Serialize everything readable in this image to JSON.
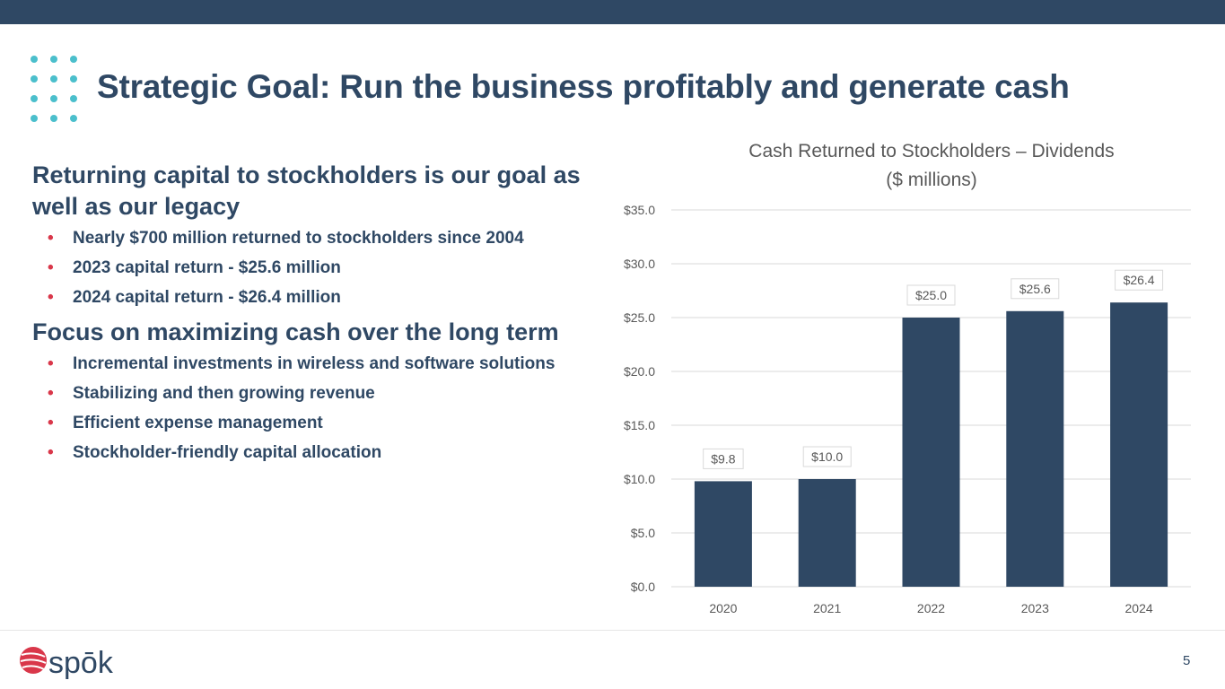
{
  "slide": {
    "title": "Strategic Goal: Run the business profitably and generate cash",
    "page_number": "5",
    "logo_text": "spōk",
    "colors": {
      "top_bar": "#2f4864",
      "accent_dots": "#4bbfcc",
      "bullet": "#d9374a",
      "text": "#2f4864",
      "bar": "#2f4864"
    }
  },
  "sections": [
    {
      "heading": "Returning capital to stockholders is our goal as well as our legacy",
      "bullets": [
        "Nearly $700 million returned to stockholders since 2004",
        "2023 capital return - $25.6 million",
        "2024 capital return - $26.4 million"
      ]
    },
    {
      "heading": "Focus on maximizing cash over the long term",
      "bullets": [
        "Incremental investments in wireless and software solutions",
        "Stabilizing and then growing revenue",
        "Efficient expense management",
        "Stockholder-friendly capital allocation"
      ]
    }
  ],
  "chart_data": {
    "type": "bar",
    "title": "Cash Returned to Stockholders – Dividends",
    "subtitle": "($ millions)",
    "categories": [
      "2020",
      "2021",
      "2022",
      "2023",
      "2024"
    ],
    "values": [
      9.8,
      10.0,
      25.0,
      25.6,
      26.4
    ],
    "data_labels": [
      "$9.8",
      "$10.0",
      "$25.0",
      "$25.6",
      "$26.4"
    ],
    "y_ticks": [
      "$0.0",
      "$5.0",
      "$10.0",
      "$15.0",
      "$20.0",
      "$25.0",
      "$30.0",
      "$35.0"
    ],
    "ylim": [
      0,
      35
    ],
    "grid": true,
    "legend": "none",
    "xlabel": "",
    "ylabel": ""
  }
}
